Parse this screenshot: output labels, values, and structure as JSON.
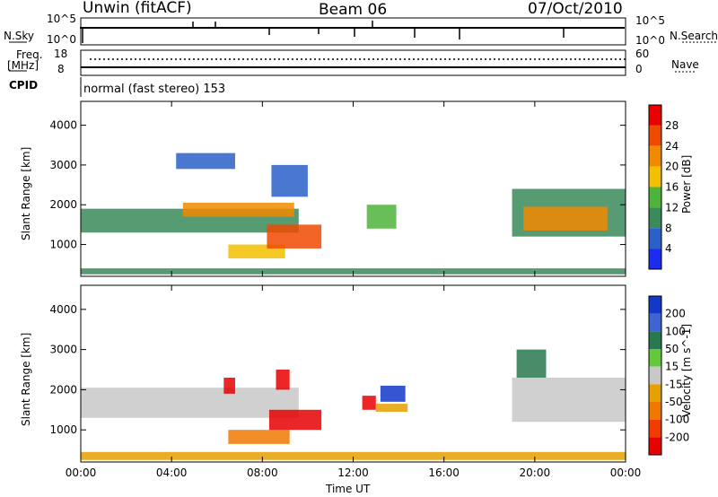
{
  "header": {
    "station": "Unwin (fitACF)",
    "beam": "Beam 06",
    "date": "07/Oct/2010"
  },
  "panel_labels": {
    "nsky": "N.Sky",
    "nsearch": "N.Search",
    "freq": "Freq.",
    "freq_unit": "[MHz]",
    "nave": "Nave",
    "cpid": "CPID",
    "cpid_value": "normal (fast stereo) 153",
    "noise_left_ticks": [
      "10^5",
      "10^0"
    ],
    "noise_right_ticks": [
      "10^5",
      "10^0"
    ],
    "freq_left_ticks": [
      "18",
      "8"
    ],
    "freq_right_ticks": [
      "60",
      "0"
    ]
  },
  "colors": {
    "power_scale": [
      "#1a2cf0",
      "#2a60c8",
      "#3a8a5a",
      "#4db33a",
      "#f2c000",
      "#f08a00",
      "#f04a00",
      "#e80000"
    ],
    "velocity_scale": [
      "#1238c8",
      "#3c64d2",
      "#287850",
      "#64c83c",
      "#c8c8c8",
      "#e6a000",
      "#f07800",
      "#f03c00",
      "#e60000"
    ]
  },
  "chart_data": [
    {
      "type": "heatmap",
      "title": "Power",
      "xlabel": "",
      "ylabel": "Slant Range [km]",
      "colorbar_label": "Power [dB]",
      "colorbar_ticks": [
        "28",
        "24",
        "20",
        "16",
        "12",
        "8",
        "4"
      ],
      "x_ticks": [
        "00:00",
        "04:00",
        "08:00",
        "12:00",
        "16:00",
        "20:00",
        "00:00"
      ],
      "y_ticks": [
        "4000",
        "3000",
        "2000",
        "1000"
      ],
      "xlim_hours": [
        0,
        24
      ],
      "ylim_km": [
        200,
        4600
      ],
      "regions": [
        {
          "t0": 0.0,
          "t1": 9.6,
          "r0": 1300,
          "r1": 1900,
          "value": 10
        },
        {
          "t0": 4.5,
          "t1": 9.4,
          "r0": 1700,
          "r1": 2050,
          "value": 21
        },
        {
          "t0": 6.5,
          "t1": 9.0,
          "r0": 650,
          "r1": 1000,
          "value": 17
        },
        {
          "t0": 8.2,
          "t1": 10.6,
          "r0": 900,
          "r1": 1500,
          "value": 26
        },
        {
          "t0": 4.2,
          "t1": 6.8,
          "r0": 2900,
          "r1": 3300,
          "value": 6
        },
        {
          "t0": 8.4,
          "t1": 10.0,
          "r0": 2200,
          "r1": 3000,
          "value": 7
        },
        {
          "t0": 12.6,
          "t1": 13.9,
          "r0": 1400,
          "r1": 2000,
          "value": 12
        },
        {
          "t0": 19.0,
          "t1": 24.0,
          "r0": 1200,
          "r1": 2400,
          "value": 9
        },
        {
          "t0": 19.5,
          "t1": 23.2,
          "r0": 1350,
          "r1": 1950,
          "value": 22
        },
        {
          "t0": 0.0,
          "t1": 24.0,
          "r0": 250,
          "r1": 400,
          "value": 8
        }
      ]
    },
    {
      "type": "heatmap",
      "title": "Velocity",
      "xlabel": "Time UT",
      "ylabel": "Slant Range [km]",
      "colorbar_label": "Velocity [m s^-1]",
      "colorbar_ticks": [
        "200",
        "100",
        "50",
        "15",
        "-15",
        "-50",
        "-100",
        "-200"
      ],
      "x_ticks": [
        "00:00",
        "04:00",
        "08:00",
        "12:00",
        "16:00",
        "20:00",
        "00:00"
      ],
      "y_ticks": [
        "4000",
        "3000",
        "2000",
        "1000"
      ],
      "xlim_hours": [
        0,
        24
      ],
      "ylim_km": [
        200,
        4600
      ],
      "regions": [
        {
          "t0": 0.0,
          "t1": 9.6,
          "r0": 1300,
          "r1": 2050,
          "value": 0
        },
        {
          "t0": 6.5,
          "t1": 9.2,
          "r0": 650,
          "r1": 1000,
          "value": -70
        },
        {
          "t0": 8.3,
          "t1": 10.6,
          "r0": 1000,
          "r1": 1500,
          "value": -220
        },
        {
          "t0": 6.3,
          "t1": 6.8,
          "r0": 1900,
          "r1": 2300,
          "value": -220
        },
        {
          "t0": 8.6,
          "t1": 9.2,
          "r0": 2000,
          "r1": 2500,
          "value": -220
        },
        {
          "t0": 12.4,
          "t1": 13.0,
          "r0": 1500,
          "r1": 1850,
          "value": -220
        },
        {
          "t0": 13.2,
          "t1": 14.3,
          "r0": 1700,
          "r1": 2100,
          "value": 220
        },
        {
          "t0": 13.0,
          "t1": 14.4,
          "r0": 1450,
          "r1": 1650,
          "value": -40
        },
        {
          "t0": 19.0,
          "t1": 24.0,
          "r0": 1200,
          "r1": 2300,
          "value": 0
        },
        {
          "t0": 19.2,
          "t1": 20.5,
          "r0": 2300,
          "r1": 3000,
          "value": 60
        },
        {
          "t0": 0.0,
          "t1": 24.0,
          "r0": 250,
          "r1": 450,
          "value": -40
        }
      ]
    }
  ]
}
